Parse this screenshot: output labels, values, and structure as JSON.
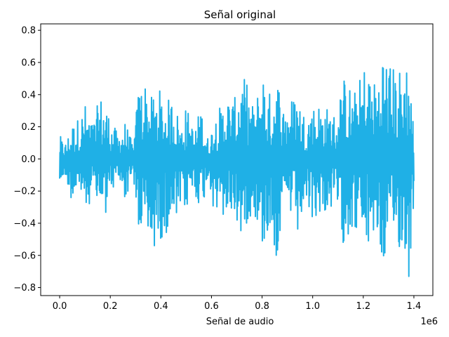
{
  "chart_data": {
    "type": "line",
    "title": "Señal original",
    "xlabel": "Señal de audio",
    "ylabel": "",
    "x_offset_text": "1e6",
    "xlim": [
      -75000,
      1475000
    ],
    "ylim": [
      -0.85,
      0.84
    ],
    "x_ticks": [
      0,
      200000,
      400000,
      600000,
      800000,
      1000000,
      1200000,
      1400000
    ],
    "x_tick_labels": [
      "0.0",
      "0.2",
      "0.4",
      "0.6",
      "0.8",
      "1.0",
      "1.2",
      "1.4"
    ],
    "y_ticks": [
      -0.8,
      -0.6,
      -0.4,
      -0.2,
      0.0,
      0.2,
      0.4,
      0.6,
      0.8
    ],
    "y_tick_labels": [
      "−0.8",
      "−0.6",
      "−0.4",
      "−0.2",
      "0.0",
      "0.2",
      "0.4",
      "0.6",
      "0.8"
    ],
    "grid": false,
    "series": [
      {
        "color": "#1fb0e6",
        "x_start": 0,
        "x_end": 1400000,
        "envelope_x": [
          0,
          20000,
          50000,
          80000,
          100000,
          130000,
          160000,
          180000,
          200000,
          230000,
          260000,
          290000,
          310000,
          330000,
          360000,
          390000,
          420000,
          450000,
          480000,
          500000,
          530000,
          560000,
          590000,
          610000,
          640000,
          660000,
          690000,
          710000,
          740000,
          770000,
          800000,
          830000,
          860000,
          880000,
          910000,
          940000,
          970000,
          1000000,
          1030000,
          1060000,
          1090000,
          1110000,
          1130000,
          1160000,
          1190000,
          1210000,
          1240000,
          1260000,
          1280000,
          1300000,
          1320000,
          1340000,
          1360000,
          1380000,
          1400000
        ],
        "upper": [
          0.15,
          0.09,
          0.22,
          0.27,
          0.35,
          0.22,
          0.4,
          0.38,
          0.25,
          0.16,
          0.24,
          0.08,
          0.43,
          0.54,
          0.38,
          0.45,
          0.36,
          0.4,
          0.2,
          0.34,
          0.18,
          0.34,
          0.1,
          0.28,
          0.34,
          0.42,
          0.36,
          0.54,
          0.48,
          0.3,
          0.6,
          0.42,
          0.56,
          0.34,
          0.38,
          0.41,
          0.28,
          0.34,
          0.36,
          0.32,
          0.28,
          0.44,
          0.54,
          0.4,
          0.52,
          0.64,
          0.48,
          0.56,
          0.74,
          0.64,
          0.58,
          0.57,
          0.6,
          0.68,
          0.19
        ],
        "lower": [
          -0.21,
          -0.1,
          -0.28,
          -0.23,
          -0.32,
          -0.25,
          -0.35,
          -0.36,
          -0.23,
          -0.14,
          -0.27,
          -0.07,
          -0.55,
          -0.48,
          -0.59,
          -0.53,
          -0.46,
          -0.48,
          -0.32,
          -0.33,
          -0.21,
          -0.33,
          -0.12,
          -0.36,
          -0.4,
          -0.37,
          -0.35,
          -0.51,
          -0.4,
          -0.34,
          -0.57,
          -0.46,
          -0.65,
          -0.41,
          -0.36,
          -0.51,
          -0.32,
          -0.41,
          -0.33,
          -0.36,
          -0.28,
          -0.49,
          -0.55,
          -0.42,
          -0.52,
          -0.62,
          -0.49,
          -0.56,
          -0.68,
          -0.64,
          -0.57,
          -0.56,
          -0.62,
          -0.77,
          -0.28
        ]
      }
    ]
  }
}
